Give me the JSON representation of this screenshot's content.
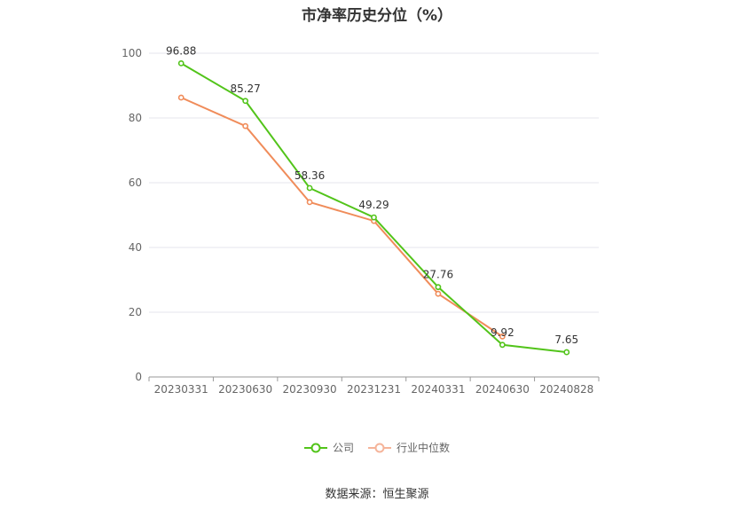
{
  "chart_data": {
    "type": "line",
    "title": "市净率历史分位（%）",
    "categories": [
      "20230331",
      "20230630",
      "20230930",
      "20231231",
      "20240331",
      "20240630",
      "20240828"
    ],
    "ylim": [
      0,
      100
    ],
    "yticks": [
      0,
      20,
      40,
      60,
      80,
      100
    ],
    "grid": true,
    "legend_position": "bottom",
    "series": [
      {
        "name": "公司",
        "color": "#52c41a",
        "values": [
          96.88,
          85.27,
          58.36,
          49.29,
          27.76,
          9.92,
          7.65
        ],
        "labels": [
          "96.88",
          "85.27",
          "58.36",
          "49.29",
          "27.76",
          "9.92",
          "7.65"
        ]
      },
      {
        "name": "行业中位数",
        "color": "#f08c5a",
        "values": [
          86.3,
          77.5,
          54.0,
          48.2,
          25.7,
          12.5,
          null
        ]
      }
    ]
  },
  "source_text": "数据来源：恒生聚源"
}
